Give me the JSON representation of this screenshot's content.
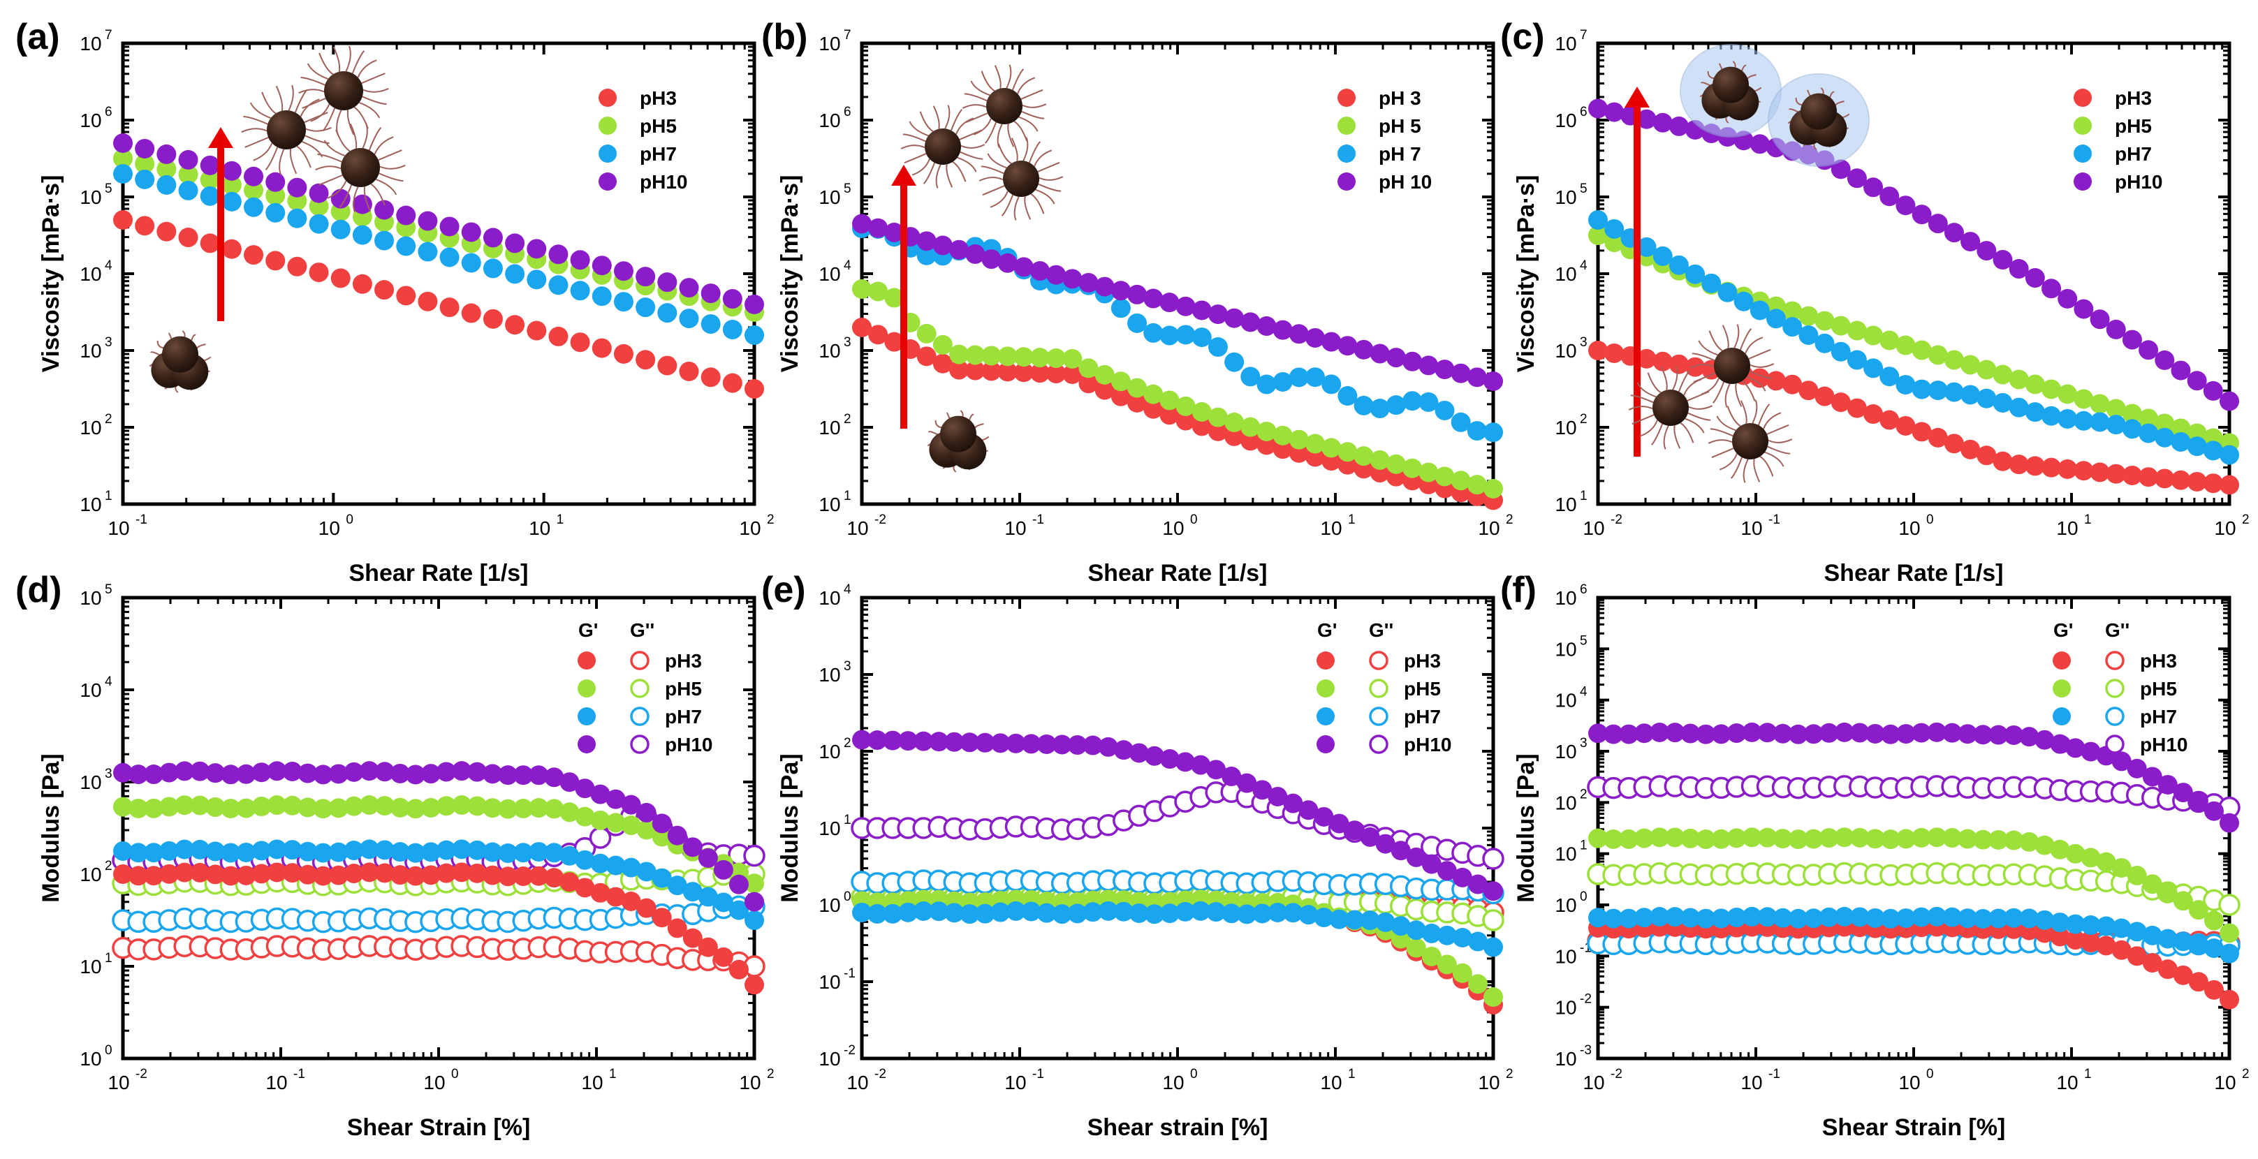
{
  "colors": {
    "pH3": "#f04040",
    "pH5": "#9de03a",
    "pH7": "#1aa6ef",
    "pH10": "#8b1cc9",
    "arrow": "#e60000"
  },
  "chart_data": [
    {
      "id": "a",
      "panel_label": "(a)",
      "type": "scatter",
      "xlabel": "Shear Rate [1/s]",
      "ylabel": "Viscosity [mPa·s]",
      "xlim_exp": [
        -1,
        2
      ],
      "ylim_exp": [
        1,
        7
      ],
      "xscale": "log",
      "yscale": "log",
      "legend": [
        "pH3",
        "pH5",
        "pH7",
        "pH10"
      ],
      "legend_position": "top-right",
      "annotations": "red arrow, particle illustrations",
      "series": [
        {
          "name": "pH3",
          "start": [
            -1,
            4.7
          ],
          "end": [
            2,
            2.5
          ]
        },
        {
          "name": "pH5",
          "start": [
            -1,
            5.5
          ],
          "end": [
            2,
            3.5
          ]
        },
        {
          "name": "pH7",
          "start": [
            -1,
            5.3
          ],
          "end": [
            2,
            3.2
          ]
        },
        {
          "name": "pH10",
          "start": [
            -1,
            5.7
          ],
          "end": [
            2,
            3.6
          ]
        }
      ]
    },
    {
      "id": "b",
      "panel_label": "(b)",
      "type": "scatter",
      "xlabel": "Shear Rate [1/s]",
      "ylabel": "Viscosity [mPa·s]",
      "xlim_exp": [
        -2,
        2
      ],
      "ylim_exp": [
        1,
        7
      ],
      "xscale": "log",
      "yscale": "log",
      "legend": [
        "pH 3",
        "pH 5",
        "pH 7",
        "pH 10"
      ],
      "legend_position": "top-right",
      "series": [
        {
          "name": "pH 3",
          "start": [
            -2,
            3.3
          ],
          "end": [
            2,
            1.3
          ]
        },
        {
          "name": "pH 5",
          "start": [
            -2,
            3.8
          ],
          "end": [
            2,
            1.45
          ]
        },
        {
          "name": "pH 7",
          "start": [
            -2,
            4.5
          ],
          "end": [
            2,
            2.0
          ]
        },
        {
          "name": "pH 10",
          "start": [
            -2,
            4.65
          ],
          "end": [
            2,
            2.55
          ]
        }
      ]
    },
    {
      "id": "c",
      "panel_label": "(c)",
      "type": "scatter",
      "xlabel": "Shear Rate [1/s]",
      "ylabel": "Viscosity [mPa·s]",
      "xlim_exp": [
        -2,
        2
      ],
      "ylim_exp": [
        1,
        7
      ],
      "xscale": "log",
      "yscale": "log",
      "legend": [
        "pH3",
        "pH5",
        "pH7",
        "pH10"
      ],
      "legend_position": "top-right",
      "series": [
        {
          "name": "pH3",
          "start": [
            -2,
            3.0
          ],
          "end": [
            2,
            1.25
          ]
        },
        {
          "name": "pH5",
          "start": [
            -2,
            4.5
          ],
          "end": [
            2,
            1.8
          ]
        },
        {
          "name": "pH7",
          "start": [
            -2,
            4.7
          ],
          "end": [
            2,
            1.45
          ]
        },
        {
          "name": "pH10",
          "start": [
            -2,
            6.15
          ],
          "end": [
            2,
            2.35
          ]
        }
      ]
    },
    {
      "id": "d",
      "panel_label": "(d)",
      "type": "scatter",
      "xlabel": "Shear Strain [%]",
      "ylabel": "Modulus [Pa]",
      "xlim_exp": [
        -2,
        2
      ],
      "ylim_exp": [
        0,
        5
      ],
      "xscale": "log",
      "yscale": "log",
      "legend_headers": [
        "G'",
        "G''"
      ],
      "legend": [
        "pH3",
        "pH5",
        "pH7",
        "pH10"
      ],
      "legend_position": "top-right",
      "series": [
        {
          "name": "pH3 G'",
          "filled": true,
          "plateau": 2.0,
          "end": 0.8
        },
        {
          "name": "pH5 G'",
          "filled": true,
          "plateau": 2.73,
          "end": 1.9
        },
        {
          "name": "pH7 G'",
          "filled": true,
          "plateau": 2.25,
          "end": 1.5
        },
        {
          "name": "pH10 G'",
          "filled": true,
          "plateau": 3.1,
          "end": 1.7
        },
        {
          "name": "pH3 G''",
          "filled": false,
          "plateau": 1.2,
          "end": 1.0
        },
        {
          "name": "pH5 G''",
          "filled": false,
          "plateau": 1.9,
          "end": 2.0
        },
        {
          "name": "pH7 G''",
          "filled": false,
          "plateau": 1.5,
          "end": 1.65
        },
        {
          "name": "pH10 G''",
          "filled": false,
          "plateau": 2.15,
          "end": 2.2
        }
      ]
    },
    {
      "id": "e",
      "panel_label": "(e)",
      "type": "scatter",
      "xlabel": "Shear strain [%]",
      "ylabel": "Modulus [Pa]",
      "xlim_exp": [
        -2,
        2
      ],
      "ylim_exp": [
        -2,
        4
      ],
      "xscale": "log",
      "yscale": "log",
      "legend_headers": [
        "G'",
        "G''"
      ],
      "legend": [
        "pH3",
        "pH5",
        "pH7",
        "pH10"
      ],
      "legend_position": "top-right",
      "series": [
        {
          "name": "pH3 G'",
          "filled": true,
          "plateau": 0.05,
          "end": -1.3
        },
        {
          "name": "pH5 G'",
          "filled": true,
          "plateau": 0.05,
          "end": -1.2
        },
        {
          "name": "pH7 G'",
          "filled": true,
          "plateau": -0.1,
          "end": -0.55
        },
        {
          "name": "pH10 G'",
          "filled": true,
          "plateau": 2.15,
          "end": -0.05
        },
        {
          "name": "pH3 G''",
          "filled": false,
          "plateau": 0.1,
          "end": -0.1
        },
        {
          "name": "pH5 G''",
          "filled": false,
          "plateau": 0.1,
          "end": -0.2
        },
        {
          "name": "pH7 G''",
          "filled": false,
          "plateau": 0.3,
          "end": 0.15
        },
        {
          "name": "pH10 G''",
          "filled": false,
          "plateau": 1.0,
          "end": 0.6
        }
      ]
    },
    {
      "id": "f",
      "panel_label": "(f)",
      "type": "scatter",
      "xlabel": "Shear Strain [%]",
      "ylabel": "Modulus [Pa]",
      "xlim_exp": [
        -2,
        2
      ],
      "ylim_exp": [
        -3,
        6
      ],
      "xscale": "log",
      "yscale": "log",
      "legend_headers": [
        "G'",
        "G''"
      ],
      "legend": [
        "pH3",
        "pH5",
        "pH7",
        "pH10"
      ],
      "legend_position": "top-right",
      "series": [
        {
          "name": "pH3 G'",
          "filled": true,
          "plateau": -0.45,
          "end": -1.85
        },
        {
          "name": "pH5 G'",
          "filled": true,
          "plateau": 1.3,
          "end": -0.55
        },
        {
          "name": "pH7 G'",
          "filled": true,
          "plateau": -0.25,
          "end": -0.95
        },
        {
          "name": "pH10 G'",
          "filled": true,
          "plateau": 3.35,
          "end": 1.6
        },
        {
          "name": "pH3 G''",
          "filled": false,
          "plateau": -0.7,
          "end": -0.75
        },
        {
          "name": "pH5 G''",
          "filled": false,
          "plateau": 0.6,
          "end": 0.0
        },
        {
          "name": "pH7 G''",
          "filled": false,
          "plateau": -0.75,
          "end": -0.8
        },
        {
          "name": "pH10 G''",
          "filled": false,
          "plateau": 2.3,
          "end": 1.9
        }
      ]
    }
  ]
}
